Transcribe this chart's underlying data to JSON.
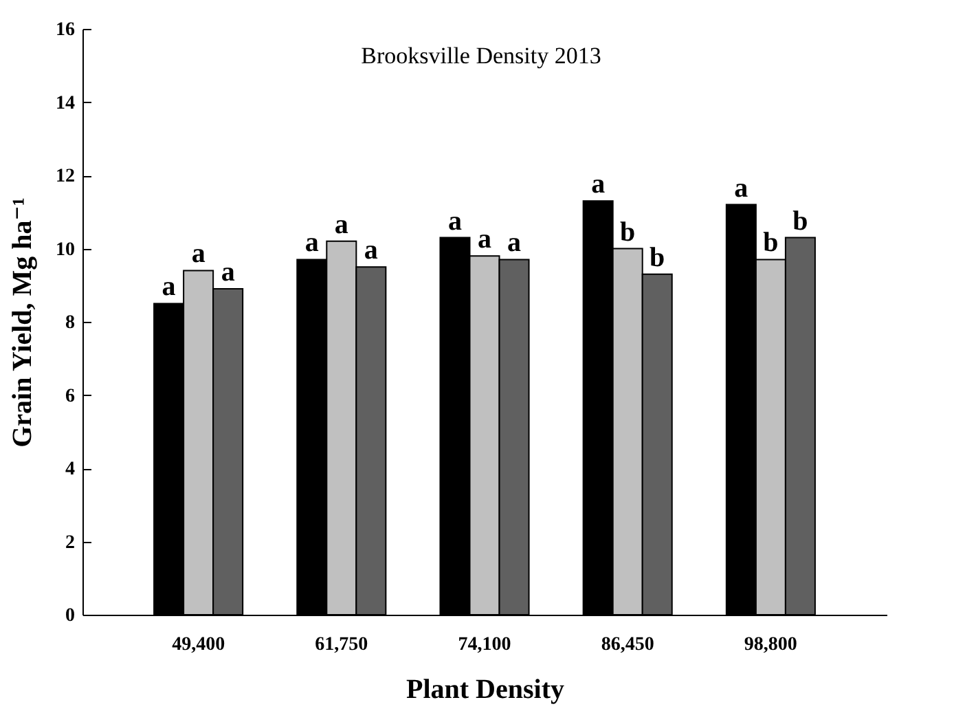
{
  "chart_data": {
    "type": "bar",
    "title": "Brooksville Density 2013",
    "xlabel": "Plant Density",
    "ylabel": "Grain Yield, Mg ha⁻¹",
    "categories": [
      "49,400",
      "61,750",
      "74,100",
      "86,450",
      "98,800"
    ],
    "series": [
      {
        "color": "#000000",
        "values": [
          8.5,
          9.7,
          10.3,
          11.3,
          11.2
        ],
        "value_labels": [
          "a",
          "a",
          "a",
          "a",
          "a"
        ]
      },
      {
        "color": "#c0c0c0",
        "values": [
          9.4,
          10.2,
          9.8,
          10.0,
          9.7
        ],
        "value_labels": [
          "a",
          "a",
          "a",
          "b",
          "b"
        ]
      },
      {
        "color": "#606060",
        "values": [
          8.9,
          9.5,
          9.7,
          9.3,
          10.3
        ],
        "value_labels": [
          "a",
          "a",
          "a",
          "b",
          "b"
        ]
      }
    ],
    "ylim": [
      0,
      16
    ],
    "yticks": [
      0,
      2,
      4,
      6,
      8,
      10,
      12,
      14,
      16
    ],
    "grid": false,
    "legend": false
  }
}
